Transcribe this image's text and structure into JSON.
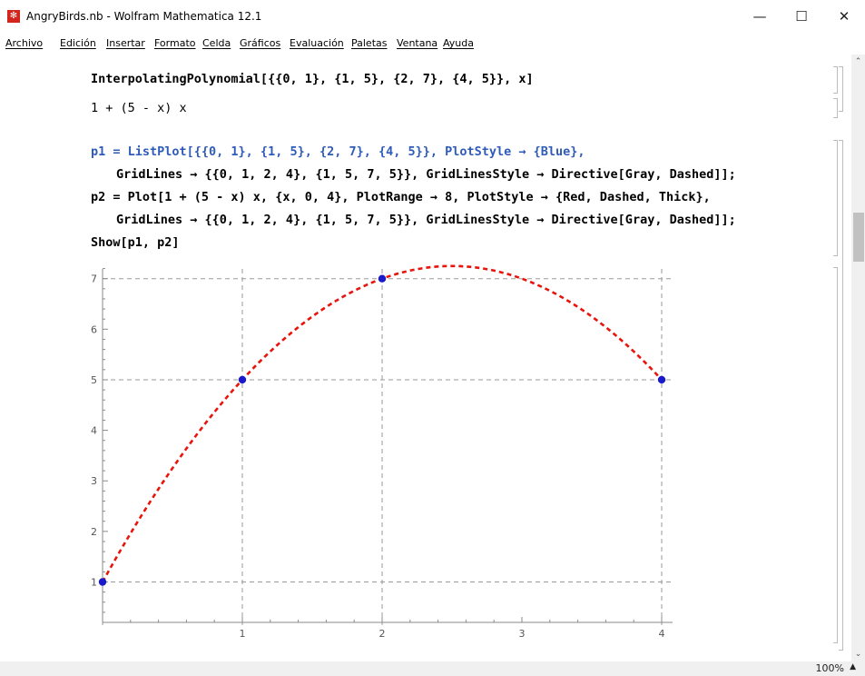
{
  "window": {
    "title": "AngryBirds.nb - Wolfram Mathematica 12.1",
    "minimize_glyph": "—",
    "maximize_glyph": "☐",
    "close_glyph": "✕"
  },
  "menu": [
    "Archivo",
    "Edición",
    "Insertar",
    "Formato",
    "Celda",
    "Gráficos",
    "Evaluación",
    "Paletas",
    "Ventana",
    "Ayuda"
  ],
  "cells": {
    "input1": "InterpolatingPolynomial[{{0, 1}, {1, 5}, {2, 7}, {4, 5}}, x]",
    "output1": "1 + (5 - x) x",
    "p1_line1": "p1 = ListPlot[{{0, 1}, {1, 5}, {2, 7}, {4, 5}}, PlotStyle → {Blue},",
    "p1_line2": "GridLines → {{0, 1, 2, 4}, {1, 5, 7, 5}}, GridLinesStyle → Directive[Gray, Dashed]];",
    "p2_line1": "p2 = Plot[1 + (5 - x) x, {x, 0, 4}, PlotRange → 8, PlotStyle → {Red, Dashed, Thick},",
    "p2_line2": "GridLines → {{0, 1, 2, 4}, {1, 5, 7, 5}}, GridLinesStyle → Directive[Gray, Dashed]];",
    "show_line": "Show[p1, p2]"
  },
  "status": {
    "zoom": "100%",
    "zoom_arrow": "▲"
  },
  "colors": {
    "points": "#1a1acc",
    "curve": "#e8140c",
    "grid": "#9a9a9a",
    "axes": "#8a8a8a"
  },
  "chart_data": {
    "type": "scatter",
    "x_ticks": [
      1,
      2,
      3,
      4
    ],
    "y_ticks": [
      1,
      2,
      3,
      4,
      5,
      6,
      7
    ],
    "x_range": [
      0,
      4
    ],
    "y_range": [
      0.2,
      7.3
    ],
    "grid_x": [
      0,
      1,
      2,
      4
    ],
    "grid_y": [
      1,
      5,
      7,
      5
    ],
    "series": [
      {
        "kind": "points",
        "x": [
          0,
          1,
          2,
          4
        ],
        "y": [
          1,
          5,
          7,
          5
        ]
      },
      {
        "kind": "curve",
        "function": "1 + (5 - x) x",
        "x_from": 0,
        "x_to": 4
      }
    ]
  }
}
